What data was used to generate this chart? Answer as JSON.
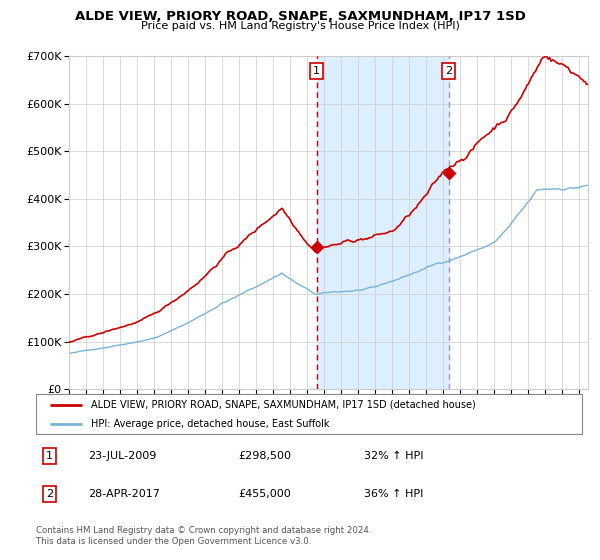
{
  "title": "ALDE VIEW, PRIORY ROAD, SNAPE, SAXMUNDHAM, IP17 1SD",
  "subtitle": "Price paid vs. HM Land Registry's House Price Index (HPI)",
  "legend_line1": "ALDE VIEW, PRIORY ROAD, SNAPE, SAXMUNDHAM, IP17 1SD (detached house)",
  "legend_line2": "HPI: Average price, detached house, East Suffolk",
  "annotation1_date": "23-JUL-2009",
  "annotation1_price": "£298,500",
  "annotation1_hpi": "32% ↑ HPI",
  "annotation2_date": "28-APR-2017",
  "annotation2_price": "£455,000",
  "annotation2_hpi": "36% ↑ HPI",
  "footer": "Contains HM Land Registry data © Crown copyright and database right 2024.\nThis data is licensed under the Open Government Licence v3.0.",
  "sale1_year": 2009.55,
  "sale1_value": 298500,
  "sale2_year": 2017.32,
  "sale2_value": 455000,
  "hpi_color": "#7ab3d8",
  "price_color": "#cc0000",
  "shade_color": "#ddeeff",
  "vline1_color": "#cc0000",
  "vline2_color": "#9999bb",
  "bg_color": "#ffffff",
  "grid_color": "#cccccc",
  "ylim_max": 700000,
  "xlim_start": 1995.0,
  "xlim_end": 2025.5
}
